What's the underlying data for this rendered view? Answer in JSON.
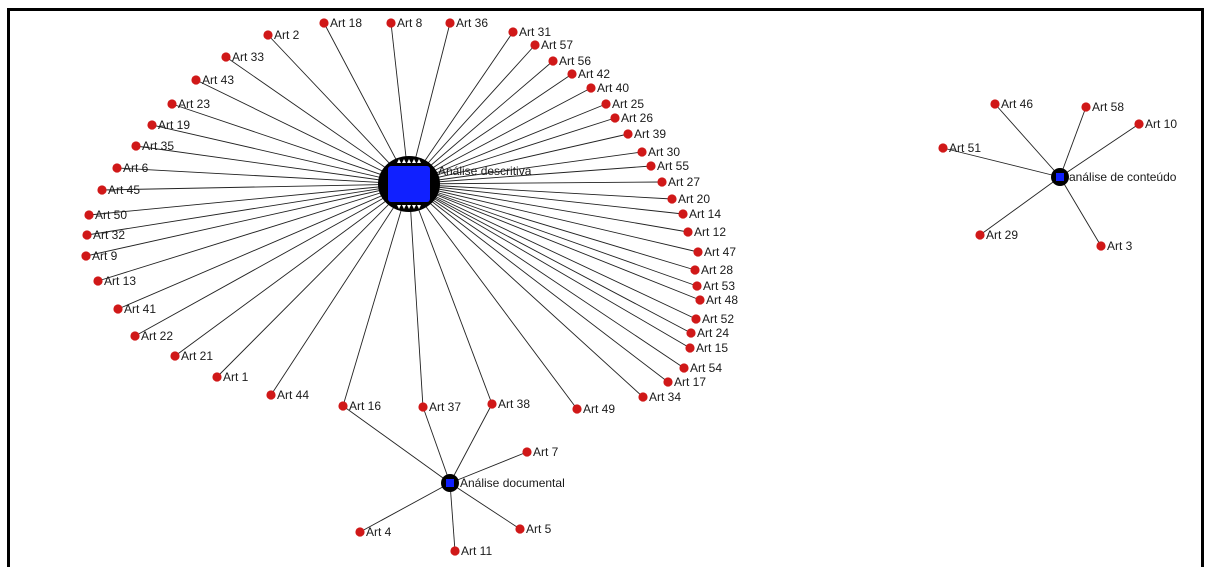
{
  "colors": {
    "node": "#d01818",
    "hub": "#1020ff",
    "edge": "#222222",
    "border": "#000000"
  },
  "hubs": [
    {
      "id": "descritiva",
      "label": "Análise descritiva",
      "shape": "large-square"
    },
    {
      "id": "documental",
      "label": "Análise documental",
      "shape": "small-square"
    },
    {
      "id": "conteudo",
      "label": "análise de conteúdo",
      "shape": "small-square"
    }
  ],
  "nodes": [
    {
      "label": "Art 18",
      "links": [
        "descritiva"
      ]
    },
    {
      "label": "Art 8",
      "links": [
        "descritiva"
      ]
    },
    {
      "label": "Art 36",
      "links": [
        "descritiva"
      ]
    },
    {
      "label": "Art 31",
      "links": [
        "descritiva"
      ]
    },
    {
      "label": "Art 2",
      "links": [
        "descritiva"
      ]
    },
    {
      "label": "Art 57",
      "links": [
        "descritiva"
      ]
    },
    {
      "label": "Art 33",
      "links": [
        "descritiva"
      ]
    },
    {
      "label": "Art 56",
      "links": [
        "descritiva"
      ]
    },
    {
      "label": "Art 42",
      "links": [
        "descritiva"
      ]
    },
    {
      "label": "Art 43",
      "links": [
        "descritiva"
      ]
    },
    {
      "label": "Art 40",
      "links": [
        "descritiva"
      ]
    },
    {
      "label": "Art 23",
      "links": [
        "descritiva"
      ]
    },
    {
      "label": "Art 25",
      "links": [
        "descritiva"
      ]
    },
    {
      "label": "Art 26",
      "links": [
        "descritiva"
      ]
    },
    {
      "label": "Art 19",
      "links": [
        "descritiva"
      ]
    },
    {
      "label": "Art 39",
      "links": [
        "descritiva"
      ]
    },
    {
      "label": "Art 35",
      "links": [
        "descritiva"
      ]
    },
    {
      "label": "Art 30",
      "links": [
        "descritiva"
      ]
    },
    {
      "label": "Art 55",
      "links": [
        "descritiva"
      ]
    },
    {
      "label": "Art 6",
      "links": [
        "descritiva"
      ]
    },
    {
      "label": "Art 27",
      "links": [
        "descritiva"
      ]
    },
    {
      "label": "Art 45",
      "links": [
        "descritiva"
      ]
    },
    {
      "label": "Art 20",
      "links": [
        "descritiva"
      ]
    },
    {
      "label": "Art 14",
      "links": [
        "descritiva"
      ]
    },
    {
      "label": "Art 50",
      "links": [
        "descritiva"
      ]
    },
    {
      "label": "Art 12",
      "links": [
        "descritiva"
      ]
    },
    {
      "label": "Art 32",
      "links": [
        "descritiva"
      ]
    },
    {
      "label": "Art 47",
      "links": [
        "descritiva"
      ]
    },
    {
      "label": "Art 9",
      "links": [
        "descritiva"
      ]
    },
    {
      "label": "Art 28",
      "links": [
        "descritiva"
      ]
    },
    {
      "label": "Art 13",
      "links": [
        "descritiva"
      ]
    },
    {
      "label": "Art 53",
      "links": [
        "descritiva"
      ]
    },
    {
      "label": "Art 48",
      "links": [
        "descritiva"
      ]
    },
    {
      "label": "Art 41",
      "links": [
        "descritiva"
      ]
    },
    {
      "label": "Art 52",
      "links": [
        "descritiva"
      ]
    },
    {
      "label": "Art 22",
      "links": [
        "descritiva"
      ]
    },
    {
      "label": "Art 24",
      "links": [
        "descritiva"
      ]
    },
    {
      "label": "Art 15",
      "links": [
        "descritiva"
      ]
    },
    {
      "label": "Art 21",
      "links": [
        "descritiva"
      ]
    },
    {
      "label": "Art 54",
      "links": [
        "descritiva"
      ]
    },
    {
      "label": "Art 17",
      "links": [
        "descritiva"
      ]
    },
    {
      "label": "Art 1",
      "links": [
        "descritiva"
      ]
    },
    {
      "label": "Art 34",
      "links": [
        "descritiva"
      ]
    },
    {
      "label": "Art 44",
      "links": [
        "descritiva"
      ]
    },
    {
      "label": "Art 16",
      "links": [
        "descritiva",
        "documental"
      ]
    },
    {
      "label": "Art 37",
      "links": [
        "descritiva",
        "documental"
      ]
    },
    {
      "label": "Art 38",
      "links": [
        "descritiva",
        "documental"
      ]
    },
    {
      "label": "Art 49",
      "links": [
        "descritiva"
      ]
    },
    {
      "label": "Art 7",
      "links": [
        "documental"
      ]
    },
    {
      "label": "Art 4",
      "links": [
        "documental"
      ]
    },
    {
      "label": "Art 5",
      "links": [
        "documental"
      ]
    },
    {
      "label": "Art 11",
      "links": [
        "documental"
      ]
    },
    {
      "label": "Art 46",
      "links": [
        "conteudo"
      ]
    },
    {
      "label": "Art 58",
      "links": [
        "conteudo"
      ]
    },
    {
      "label": "Art 10",
      "links": [
        "conteudo"
      ]
    },
    {
      "label": "Art 51",
      "links": [
        "conteudo"
      ]
    },
    {
      "label": "Art 29",
      "links": [
        "conteudo"
      ]
    },
    {
      "label": "Art 3",
      "links": [
        "conteudo"
      ]
    }
  ]
}
